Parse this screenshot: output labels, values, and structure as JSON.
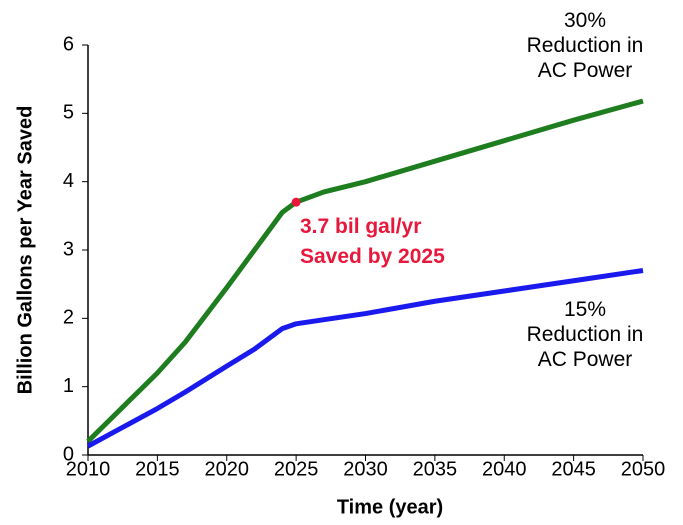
{
  "chart_data": {
    "type": "line",
    "x_label": "Time (year)",
    "y_label": "Billion Gallons per Year Saved",
    "x": [
      2010,
      2012,
      2015,
      2017,
      2020,
      2022,
      2024,
      2025,
      2027,
      2030,
      2035,
      2040,
      2045,
      2050
    ],
    "series": [
      {
        "name": "30% Reduction in AC Power",
        "color": "#1e7d1e",
        "values": [
          0.2,
          0.6,
          1.2,
          1.65,
          2.45,
          3.0,
          3.55,
          3.7,
          3.85,
          4.0,
          4.3,
          4.6,
          4.9,
          5.18
        ]
      },
      {
        "name": "15% Reduction in AC Power",
        "color": "#1a1aee",
        "values": [
          0.13,
          0.35,
          0.68,
          0.92,
          1.3,
          1.55,
          1.85,
          1.92,
          1.98,
          2.07,
          2.25,
          2.4,
          2.55,
          2.7
        ]
      }
    ],
    "annotation": {
      "x": 2025,
      "y": 3.7,
      "color": "#e8183c",
      "label": "3.7 bil gal/yr Saved by 2025"
    },
    "xlim": [
      2010,
      2050
    ],
    "xticks": [
      2010,
      2015,
      2020,
      2025,
      2030,
      2035,
      2040,
      2045,
      2050
    ],
    "ylim": [
      0,
      6
    ],
    "yticks": [
      0,
      1,
      2,
      3,
      4,
      5,
      6
    ],
    "grid": false
  }
}
